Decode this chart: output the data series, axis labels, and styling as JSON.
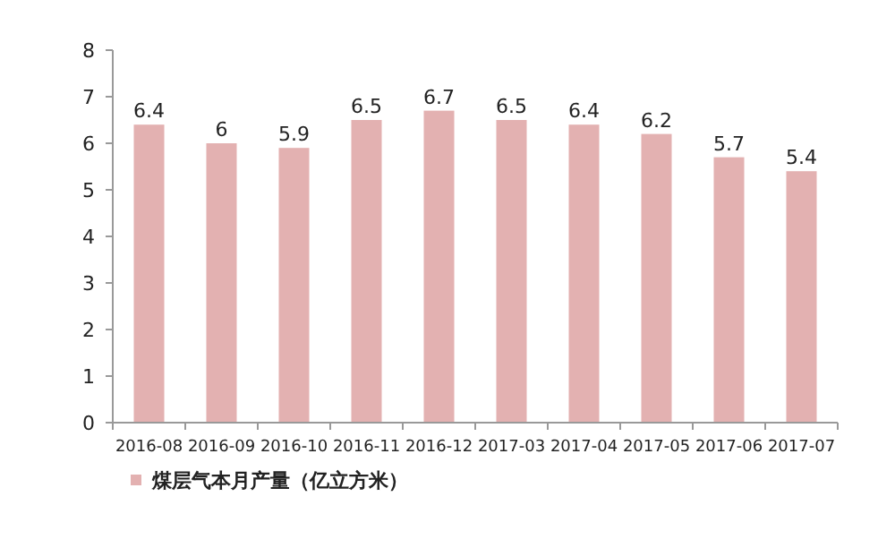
{
  "chart_data": {
    "type": "bar",
    "categories": [
      "2016-08",
      "2016-09",
      "2016-10",
      "2016-11",
      "2016-12",
      "2017-03",
      "2017-04",
      "2017-05",
      "2017-06",
      "2017-07"
    ],
    "series": [
      {
        "name": "煤层气本月产量（亿立方米）",
        "color": "#e3b1b1",
        "values": [
          6.4,
          6,
          5.9,
          6.5,
          6.7,
          6.5,
          6.4,
          6.2,
          5.7,
          5.4
        ]
      }
    ],
    "ylim": [
      0,
      8
    ],
    "yticks": [
      0,
      1,
      2,
      3,
      4,
      5,
      6,
      7,
      8
    ],
    "data_labels": true,
    "legend": "bottom left",
    "grid": false
  }
}
